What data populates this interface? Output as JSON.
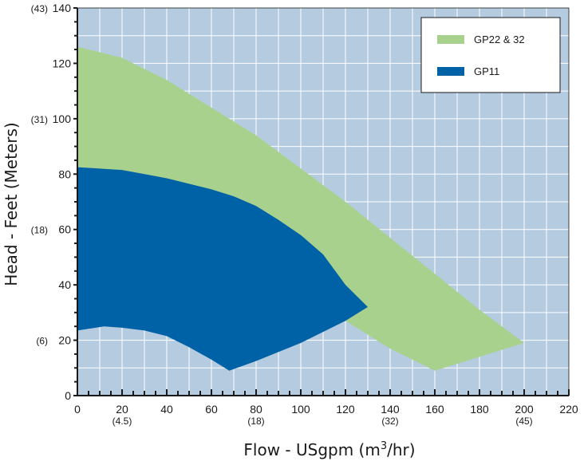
{
  "chart_data": {
    "type": "area",
    "title": "",
    "xlabel": {
      "main": "Flow - USgpm (m",
      "sup": "3",
      "tail": "/hr)"
    },
    "ylabel": "Head - Feet (Meters)",
    "xlim": [
      0,
      220
    ],
    "ylim": [
      0,
      140
    ],
    "x_ticks": [
      0,
      20,
      40,
      60,
      80,
      100,
      120,
      140,
      160,
      180,
      200,
      220
    ],
    "x_secondary_labels": [
      {
        "x": 20,
        "label": "(4.5)"
      },
      {
        "x": 80,
        "label": "(18)"
      },
      {
        "x": 140,
        "label": "(32)"
      },
      {
        "x": 200,
        "label": "(45)"
      }
    ],
    "y_ticks": [
      0,
      20,
      40,
      60,
      80,
      100,
      120,
      140
    ],
    "y_secondary_labels": [
      {
        "y": 20,
        "label": "(6)"
      },
      {
        "y": 60,
        "label": "(18)"
      },
      {
        "y": 100,
        "label": "(31)"
      },
      {
        "y": 140,
        "label": "(43)"
      }
    ],
    "grid": true,
    "legend_position": "top-right",
    "colors": {
      "plot_background": "#b5cbe0",
      "grid": "#ffffff",
      "frame": "#1a1a1a"
    },
    "series": [
      {
        "name": "GP22 & 32",
        "color": "#a9d18e",
        "outline": [
          [
            0,
            126
          ],
          [
            20,
            122
          ],
          [
            40,
            114
          ],
          [
            60,
            104
          ],
          [
            80,
            94
          ],
          [
            100,
            82
          ],
          [
            120,
            70
          ],
          [
            140,
            57
          ],
          [
            160,
            44
          ],
          [
            180,
            31
          ],
          [
            200,
            19
          ],
          [
            160,
            9
          ],
          [
            140,
            17
          ],
          [
            120,
            27
          ],
          [
            110,
            32
          ],
          [
            0,
            82
          ]
        ]
      },
      {
        "name": "GP11",
        "color": "#0062a6",
        "outline": [
          [
            0,
            82.5
          ],
          [
            20,
            81.5
          ],
          [
            30,
            80
          ],
          [
            40,
            78.5
          ],
          [
            60,
            74.5
          ],
          [
            70,
            72
          ],
          [
            80,
            68.5
          ],
          [
            90,
            63.5
          ],
          [
            100,
            58
          ],
          [
            110,
            51
          ],
          [
            120,
            40
          ],
          [
            130,
            32
          ],
          [
            120,
            27
          ],
          [
            100,
            19
          ],
          [
            80,
            12.5
          ],
          [
            68,
            9
          ],
          [
            60,
            13
          ],
          [
            50,
            17.5
          ],
          [
            40,
            21.5
          ],
          [
            30,
            23.5
          ],
          [
            20,
            24.5
          ],
          [
            12,
            25
          ],
          [
            0,
            23.5
          ]
        ]
      }
    ]
  }
}
